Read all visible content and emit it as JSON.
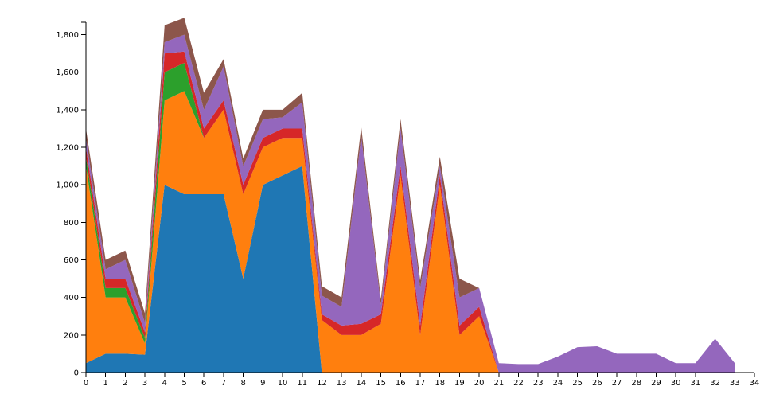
{
  "chart_data": {
    "type": "area",
    "stacked": true,
    "title": "",
    "xlabel": "",
    "ylabel": "",
    "xlim": [
      0,
      34
    ],
    "ylim": [
      0,
      1900
    ],
    "x": [
      0,
      1,
      2,
      3,
      4,
      5,
      6,
      7,
      8,
      9,
      10,
      11,
      12,
      13,
      14,
      15,
      16,
      17,
      18,
      19,
      20,
      21,
      22,
      23,
      24,
      25,
      26,
      27,
      28,
      29,
      30,
      31,
      32,
      33
    ],
    "x_ticks": [
      "0",
      "1",
      "2",
      "3",
      "4",
      "5",
      "6",
      "7",
      "8",
      "9",
      "10",
      "11",
      "12",
      "13",
      "14",
      "15",
      "16",
      "17",
      "18",
      "19",
      "20",
      "21",
      "22",
      "23",
      "24",
      "25",
      "26",
      "27",
      "28",
      "29",
      "30",
      "31",
      "32",
      "33",
      "34"
    ],
    "y_ticks": [
      {
        "value": 0,
        "label": "0"
      },
      {
        "value": 200,
        "label": "200"
      },
      {
        "value": 400,
        "label": "400"
      },
      {
        "value": 600,
        "label": "600"
      },
      {
        "value": 800,
        "label": "800"
      },
      {
        "value": 1000,
        "label": "1,000"
      },
      {
        "value": 1200,
        "label": "1,200"
      },
      {
        "value": 1400,
        "label": "1,400"
      },
      {
        "value": 1600,
        "label": "1,600"
      },
      {
        "value": 1800,
        "label": "1,800"
      }
    ],
    "grid": false,
    "legend": "none",
    "series": [
      {
        "color": "#1f77b4",
        "values": [
          50,
          100,
          100,
          95,
          1000,
          950,
          950,
          950,
          500,
          1000,
          1050,
          1100,
          0,
          0,
          0,
          0,
          0,
          0,
          0,
          0,
          0,
          0,
          0,
          0,
          0,
          0,
          0,
          0,
          0,
          0,
          0,
          0,
          0,
          0
        ]
      },
      {
        "color": "#ff7f0e",
        "values": [
          1050,
          300,
          300,
          60,
          450,
          550,
          300,
          450,
          450,
          200,
          200,
          150,
          280,
          200,
          200,
          260,
          1050,
          200,
          1000,
          200,
          300,
          0,
          0,
          0,
          0,
          0,
          0,
          0,
          0,
          0,
          0,
          0,
          0,
          0
        ]
      },
      {
        "color": "#2ca02c",
        "values": [
          50,
          50,
          50,
          30,
          150,
          150,
          0,
          0,
          0,
          0,
          0,
          0,
          0,
          0,
          0,
          0,
          0,
          0,
          0,
          0,
          0,
          0,
          0,
          0,
          0,
          0,
          0,
          0,
          0,
          0,
          0,
          0,
          0,
          0
        ]
      },
      {
        "color": "#d62728",
        "values": [
          50,
          50,
          50,
          30,
          100,
          60,
          50,
          50,
          50,
          50,
          50,
          50,
          30,
          50,
          60,
          50,
          50,
          50,
          50,
          50,
          50,
          0,
          0,
          0,
          0,
          0,
          0,
          0,
          0,
          0,
          0,
          0,
          0,
          0
        ]
      },
      {
        "color": "#9467bd",
        "values": [
          50,
          50,
          100,
          50,
          60,
          90,
          100,
          180,
          100,
          100,
          60,
          140,
          100,
          100,
          1000,
          50,
          200,
          200,
          50,
          150,
          100,
          50,
          45,
          45,
          85,
          135,
          140,
          100,
          100,
          100,
          50,
          50,
          180,
          50
        ]
      },
      {
        "color": "#8c564b",
        "values": [
          50,
          50,
          50,
          50,
          90,
          90,
          90,
          40,
          40,
          50,
          40,
          50,
          50,
          50,
          50,
          30,
          50,
          40,
          50,
          100,
          0,
          0,
          0,
          0,
          0,
          0,
          0,
          0,
          0,
          0,
          0,
          0,
          0,
          0
        ]
      }
    ]
  }
}
